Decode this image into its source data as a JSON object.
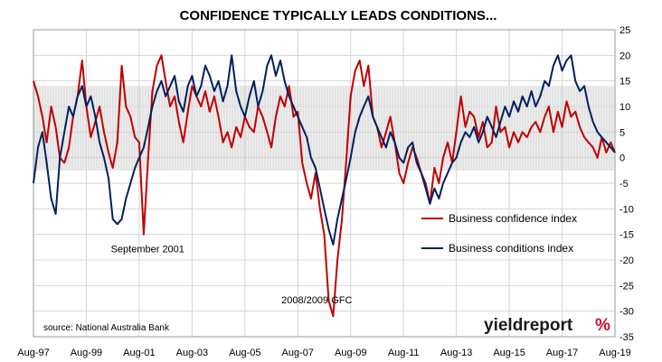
{
  "chart_data": {
    "type": "line",
    "title": "CONFIDENCE TYPICALLY LEADS CONDITIONS...",
    "source": "source: National Australia Bank",
    "brand": {
      "text_main": "yieldreport",
      "text_symbol": "%",
      "colors": {
        "main": "#1a1a1a",
        "symbol_left": "#2e9b3b",
        "symbol_right": "#c8102e"
      }
    },
    "x_ticks": [
      "Aug-97",
      "Aug-99",
      "Aug-01",
      "Aug-03",
      "Aug-05",
      "Aug-07",
      "Aug-09",
      "Aug-11",
      "Aug-13",
      "Aug-15",
      "Aug-17",
      "Aug-19"
    ],
    "x_range": [
      1997.58,
      2019.58
    ],
    "y_ticks": [
      25,
      20,
      15,
      10,
      5,
      0,
      -5,
      -10,
      -15,
      -20,
      -25,
      -30,
      -35
    ],
    "ylim": [
      -35,
      25
    ],
    "band": [
      -2.5,
      14
    ],
    "annotations": [
      {
        "text": "September 2001",
        "x": 2001.9,
        "y": -18.5
      },
      {
        "text": "2008/2009 GFC",
        "x": 2008.3,
        "y": -28.5
      }
    ],
    "legend_position": "right-middle",
    "series": [
      {
        "name": "Business confidence index",
        "color": "#c00000",
        "points": [
          [
            1997.58,
            15
          ],
          [
            1997.75,
            12
          ],
          [
            1997.92,
            8
          ],
          [
            1998.08,
            3
          ],
          [
            1998.25,
            10
          ],
          [
            1998.42,
            6
          ],
          [
            1998.58,
            0
          ],
          [
            1998.75,
            -1
          ],
          [
            1998.92,
            2
          ],
          [
            1999.08,
            8
          ],
          [
            1999.25,
            12
          ],
          [
            1999.42,
            19
          ],
          [
            1999.58,
            10
          ],
          [
            1999.75,
            4
          ],
          [
            1999.92,
            7
          ],
          [
            2000.08,
            10
          ],
          [
            2000.25,
            5
          ],
          [
            2000.42,
            1
          ],
          [
            2000.58,
            -2
          ],
          [
            2000.75,
            3
          ],
          [
            2000.92,
            18
          ],
          [
            2001.08,
            10
          ],
          [
            2001.25,
            8
          ],
          [
            2001.42,
            4
          ],
          [
            2001.58,
            3
          ],
          [
            2001.75,
            -15
          ],
          [
            2001.92,
            0
          ],
          [
            2002.08,
            13
          ],
          [
            2002.25,
            18
          ],
          [
            2002.42,
            20
          ],
          [
            2002.58,
            15
          ],
          [
            2002.75,
            10
          ],
          [
            2002.92,
            12
          ],
          [
            2003.08,
            7
          ],
          [
            2003.25,
            3
          ],
          [
            2003.42,
            9
          ],
          [
            2003.58,
            14
          ],
          [
            2003.75,
            12
          ],
          [
            2003.92,
            10
          ],
          [
            2004.08,
            13
          ],
          [
            2004.25,
            9
          ],
          [
            2004.42,
            12
          ],
          [
            2004.58,
            8
          ],
          [
            2004.75,
            3
          ],
          [
            2004.92,
            5
          ],
          [
            2005.08,
            2
          ],
          [
            2005.25,
            6
          ],
          [
            2005.42,
            4
          ],
          [
            2005.58,
            8
          ],
          [
            2005.75,
            6
          ],
          [
            2005.92,
            5
          ],
          [
            2006.08,
            10
          ],
          [
            2006.25,
            8
          ],
          [
            2006.42,
            5
          ],
          [
            2006.58,
            2
          ],
          [
            2006.75,
            8
          ],
          [
            2006.92,
            12
          ],
          [
            2007.08,
            10
          ],
          [
            2007.25,
            14
          ],
          [
            2007.42,
            8
          ],
          [
            2007.58,
            9
          ],
          [
            2007.75,
            -1
          ],
          [
            2007.92,
            -5
          ],
          [
            2008.08,
            -8
          ],
          [
            2008.25,
            -3
          ],
          [
            2008.42,
            -10
          ],
          [
            2008.58,
            -15
          ],
          [
            2008.75,
            -28
          ],
          [
            2008.92,
            -31
          ],
          [
            2009.08,
            -20
          ],
          [
            2009.25,
            -12
          ],
          [
            2009.42,
            0
          ],
          [
            2009.58,
            12
          ],
          [
            2009.75,
            17
          ],
          [
            2009.92,
            19
          ],
          [
            2010.08,
            14
          ],
          [
            2010.25,
            18
          ],
          [
            2010.42,
            8
          ],
          [
            2010.58,
            6
          ],
          [
            2010.75,
            2
          ],
          [
            2010.92,
            5
          ],
          [
            2011.08,
            8
          ],
          [
            2011.25,
            3
          ],
          [
            2011.42,
            -3
          ],
          [
            2011.58,
            -5
          ],
          [
            2011.75,
            -1
          ],
          [
            2011.92,
            2
          ],
          [
            2012.08,
            0
          ],
          [
            2012.25,
            -3
          ],
          [
            2012.42,
            -5
          ],
          [
            2012.58,
            -9
          ],
          [
            2012.75,
            -2
          ],
          [
            2012.92,
            -5
          ],
          [
            2013.08,
            0
          ],
          [
            2013.25,
            3
          ],
          [
            2013.42,
            -1
          ],
          [
            2013.58,
            5
          ],
          [
            2013.75,
            12
          ],
          [
            2013.92,
            6
          ],
          [
            2014.08,
            9
          ],
          [
            2014.25,
            8
          ],
          [
            2014.42,
            4
          ],
          [
            2014.58,
            7
          ],
          [
            2014.75,
            2
          ],
          [
            2014.92,
            3
          ],
          [
            2015.08,
            10
          ],
          [
            2015.25,
            5
          ],
          [
            2015.42,
            6
          ],
          [
            2015.58,
            2
          ],
          [
            2015.75,
            5
          ],
          [
            2015.92,
            3
          ],
          [
            2016.08,
            5
          ],
          [
            2016.25,
            4
          ],
          [
            2016.42,
            6
          ],
          [
            2016.58,
            7
          ],
          [
            2016.75,
            5
          ],
          [
            2016.92,
            8
          ],
          [
            2017.08,
            10
          ],
          [
            2017.25,
            5
          ],
          [
            2017.42,
            9
          ],
          [
            2017.58,
            6
          ],
          [
            2017.75,
            11
          ],
          [
            2017.92,
            8
          ],
          [
            2018.08,
            9
          ],
          [
            2018.25,
            6
          ],
          [
            2018.42,
            4
          ],
          [
            2018.58,
            3
          ],
          [
            2018.75,
            2
          ],
          [
            2018.92,
            0
          ],
          [
            2019.08,
            4
          ],
          [
            2019.25,
            1
          ],
          [
            2019.42,
            3
          ],
          [
            2019.58,
            1
          ]
        ]
      },
      {
        "name": "Business conditions index",
        "color": "#002060",
        "points": [
          [
            1997.58,
            -5
          ],
          [
            1997.75,
            2
          ],
          [
            1997.92,
            5
          ],
          [
            1998.08,
            -1
          ],
          [
            1998.25,
            -8
          ],
          [
            1998.42,
            -11
          ],
          [
            1998.58,
            0
          ],
          [
            1998.75,
            5
          ],
          [
            1998.92,
            10
          ],
          [
            1999.08,
            8
          ],
          [
            1999.25,
            12
          ],
          [
            1999.42,
            14
          ],
          [
            1999.58,
            10
          ],
          [
            1999.75,
            12
          ],
          [
            1999.92,
            8
          ],
          [
            2000.08,
            3
          ],
          [
            2000.25,
            0
          ],
          [
            2000.42,
            -4
          ],
          [
            2000.58,
            -12
          ],
          [
            2000.75,
            -13
          ],
          [
            2000.92,
            -12
          ],
          [
            2001.08,
            -8
          ],
          [
            2001.25,
            -5
          ],
          [
            2001.42,
            -2
          ],
          [
            2001.58,
            0
          ],
          [
            2001.75,
            2
          ],
          [
            2001.92,
            6
          ],
          [
            2002.08,
            10
          ],
          [
            2002.25,
            13
          ],
          [
            2002.42,
            15
          ],
          [
            2002.58,
            12
          ],
          [
            2002.75,
            14
          ],
          [
            2002.92,
            16
          ],
          [
            2003.08,
            11
          ],
          [
            2003.25,
            9
          ],
          [
            2003.42,
            14
          ],
          [
            2003.58,
            16
          ],
          [
            2003.75,
            12
          ],
          [
            2003.92,
            14
          ],
          [
            2004.08,
            18
          ],
          [
            2004.25,
            16
          ],
          [
            2004.42,
            13
          ],
          [
            2004.58,
            15
          ],
          [
            2004.75,
            11
          ],
          [
            2004.92,
            14
          ],
          [
            2005.08,
            20
          ],
          [
            2005.25,
            13
          ],
          [
            2005.42,
            10
          ],
          [
            2005.58,
            8
          ],
          [
            2005.75,
            12
          ],
          [
            2005.92,
            15
          ],
          [
            2006.08,
            10
          ],
          [
            2006.25,
            13
          ],
          [
            2006.42,
            18
          ],
          [
            2006.58,
            20
          ],
          [
            2006.75,
            16
          ],
          [
            2006.92,
            19
          ],
          [
            2007.08,
            15
          ],
          [
            2007.25,
            12
          ],
          [
            2007.42,
            10
          ],
          [
            2007.58,
            8
          ],
          [
            2007.75,
            6
          ],
          [
            2007.92,
            4
          ],
          [
            2008.08,
            0
          ],
          [
            2008.25,
            -2
          ],
          [
            2008.42,
            -6
          ],
          [
            2008.58,
            -10
          ],
          [
            2008.75,
            -14
          ],
          [
            2008.92,
            -17
          ],
          [
            2009.08,
            -12
          ],
          [
            2009.25,
            -8
          ],
          [
            2009.42,
            -4
          ],
          [
            2009.58,
            0
          ],
          [
            2009.75,
            5
          ],
          [
            2009.92,
            8
          ],
          [
            2010.08,
            10
          ],
          [
            2010.25,
            12
          ],
          [
            2010.42,
            8
          ],
          [
            2010.58,
            6
          ],
          [
            2010.75,
            4
          ],
          [
            2010.92,
            2
          ],
          [
            2011.08,
            5
          ],
          [
            2011.25,
            3
          ],
          [
            2011.42,
            0
          ],
          [
            2011.58,
            -1
          ],
          [
            2011.75,
            2
          ],
          [
            2011.92,
            3
          ],
          [
            2012.08,
            -1
          ],
          [
            2012.25,
            -3
          ],
          [
            2012.42,
            -6
          ],
          [
            2012.58,
            -9
          ],
          [
            2012.75,
            -6
          ],
          [
            2012.92,
            -8
          ],
          [
            2013.08,
            -5
          ],
          [
            2013.25,
            -3
          ],
          [
            2013.42,
            -1
          ],
          [
            2013.58,
            0
          ],
          [
            2013.75,
            3
          ],
          [
            2013.92,
            5
          ],
          [
            2014.08,
            4
          ],
          [
            2014.25,
            6
          ],
          [
            2014.42,
            3
          ],
          [
            2014.58,
            5
          ],
          [
            2014.75,
            8
          ],
          [
            2014.92,
            6
          ],
          [
            2015.08,
            4
          ],
          [
            2015.25,
            7
          ],
          [
            2015.42,
            10
          ],
          [
            2015.58,
            8
          ],
          [
            2015.75,
            11
          ],
          [
            2015.92,
            9
          ],
          [
            2016.08,
            12
          ],
          [
            2016.25,
            10
          ],
          [
            2016.42,
            13
          ],
          [
            2016.58,
            10
          ],
          [
            2016.75,
            12
          ],
          [
            2016.92,
            15
          ],
          [
            2017.08,
            14
          ],
          [
            2017.25,
            18
          ],
          [
            2017.42,
            20
          ],
          [
            2017.58,
            17
          ],
          [
            2017.75,
            19
          ],
          [
            2017.92,
            20
          ],
          [
            2018.08,
            15
          ],
          [
            2018.25,
            13
          ],
          [
            2018.42,
            14
          ],
          [
            2018.58,
            10
          ],
          [
            2018.75,
            7
          ],
          [
            2018.92,
            5
          ],
          [
            2019.08,
            4
          ],
          [
            2019.25,
            3
          ],
          [
            2019.42,
            2
          ],
          [
            2019.58,
            1
          ]
        ]
      }
    ]
  }
}
